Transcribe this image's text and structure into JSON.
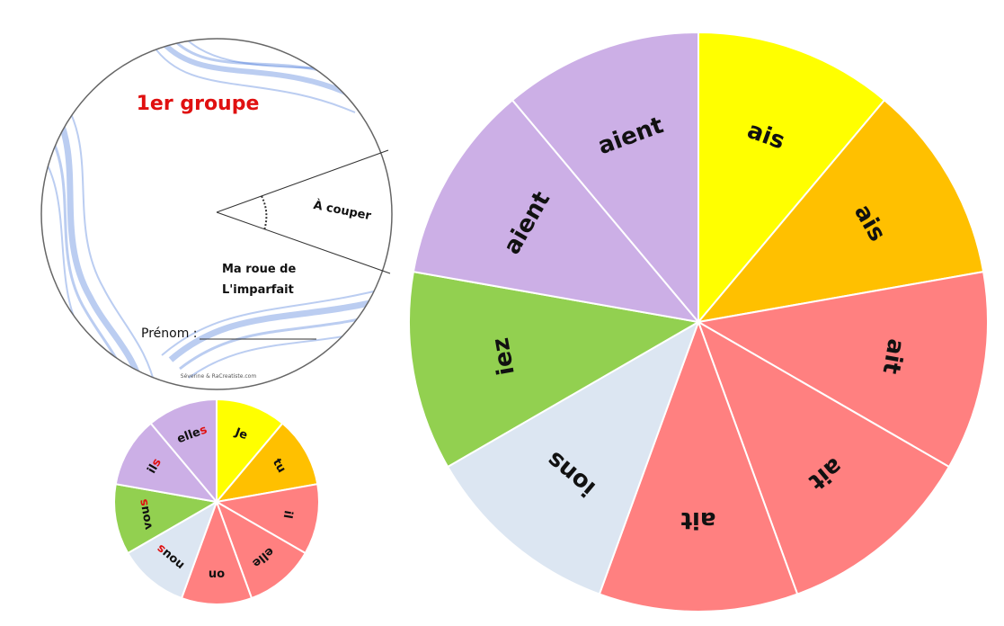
{
  "cover": {
    "title": "1er groupe",
    "title_color": "#e01010",
    "cut_label": "À couper",
    "wheel_title_line1": "Ma roue de",
    "wheel_title_line2": "L'imparfait",
    "name_label": "Prénom :",
    "credit": "Séverine & RaCreatiste.com"
  },
  "pronoun_wheel": {
    "slices": [
      {
        "label": "Je",
        "color": "#ffff00"
      },
      {
        "label": "tu",
        "color": "#ffc000"
      },
      {
        "label": "il",
        "color": "#ff8080"
      },
      {
        "label": "elle",
        "color": "#ff8080"
      },
      {
        "label": "on",
        "color": "#ff8080"
      },
      {
        "label": "nous",
        "color": "#dce6f2",
        "accent_char": "s"
      },
      {
        "label": "vous",
        "color": "#92d050",
        "accent_char": "s"
      },
      {
        "label": "ils",
        "color": "#ccafe6",
        "accent_char": "s"
      },
      {
        "label": "elles",
        "color": "#ccafe6",
        "accent_char": "s"
      }
    ],
    "accent_color": "#e01010"
  },
  "ending_wheel": {
    "slices": [
      {
        "label": "ais",
        "color": "#ffff00"
      },
      {
        "label": "ais",
        "color": "#ffc000"
      },
      {
        "label": "ait",
        "color": "#ff8080"
      },
      {
        "label": "ait",
        "color": "#ff8080"
      },
      {
        "label": "ait",
        "color": "#ff8080"
      },
      {
        "label": "ions",
        "color": "#dce6f2"
      },
      {
        "label": "iez",
        "color": "#92d050"
      },
      {
        "label": "aient",
        "color": "#ccafe6"
      },
      {
        "label": "aient",
        "color": "#ccafe6"
      }
    ]
  }
}
